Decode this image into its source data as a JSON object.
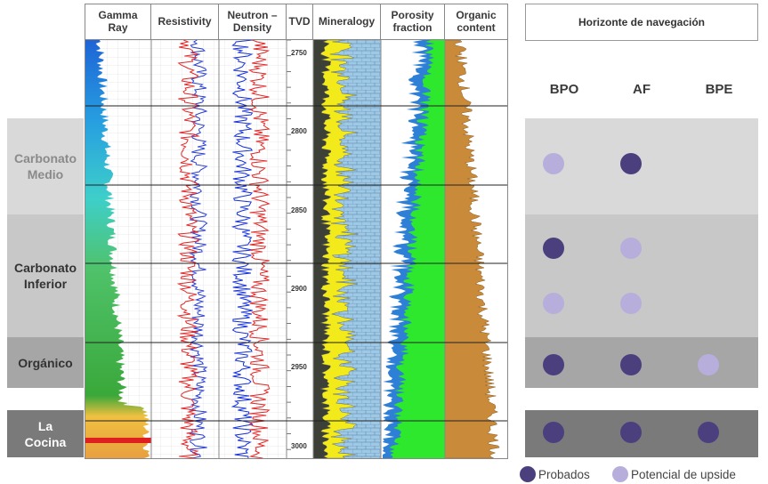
{
  "log_headers": {
    "gamma": "Gamma Ray",
    "resistivity": "Resistivity",
    "neutron": "Neutron – Density",
    "tvd": "TVD",
    "mineralogy": "Mineralogy",
    "porosity": "Porosity fraction",
    "organic": "Organic content"
  },
  "depth_ticks": [
    "2750",
    "2800",
    "2850",
    "2900",
    "2950",
    "3000"
  ],
  "zones": [
    {
      "name": "Carbonato Medio",
      "color": "#d9d9d9",
      "text_color": "#8a8a8a"
    },
    {
      "name": "Carbonato Inferior",
      "color": "#c8c8c8",
      "text_color": "#333333"
    },
    {
      "name": "Orgánico",
      "color": "#a6a6a6",
      "text_color": "#333333"
    },
    {
      "name": "La Cocina",
      "color": "#7a7a7a",
      "text_color": "#ffffff"
    }
  ],
  "navigation": {
    "title": "Horizonte de navegación",
    "columns": [
      "BPO",
      "AF",
      "BPE"
    ],
    "rows": [
      {
        "zone": "Carbonato Medio",
        "BPO": "potencial",
        "AF": "probado",
        "BPE": ""
      },
      {
        "zone": "Carbonato Inferior",
        "BPO": "probado",
        "AF": "potencial",
        "BPE": ""
      },
      {
        "zone": "Carbonato Inferior",
        "BPO": "potencial",
        "AF": "potencial",
        "BPE": ""
      },
      {
        "zone": "Orgánico",
        "BPO": "probado",
        "AF": "probado",
        "BPE": "potencial"
      },
      {
        "zone": "La Cocina",
        "BPO": "probado",
        "AF": "probado",
        "BPE": "probado"
      }
    ]
  },
  "legend": {
    "proven": {
      "label": "Probados",
      "color": "#4b3f7e"
    },
    "upside": {
      "label": "Potencial de upside",
      "color": "#b7aedb"
    }
  }
}
